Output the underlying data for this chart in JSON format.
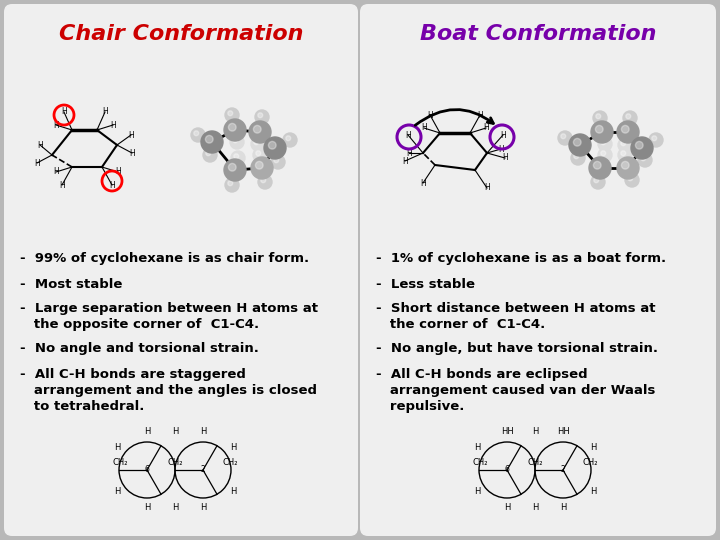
{
  "background_color": "#b8b8b8",
  "left_panel": {
    "title": "Chair Conformation",
    "title_color": "#cc0000",
    "panel_bg": "#efefef"
  },
  "right_panel": {
    "title": "Boat Conformation",
    "title_color": "#7700aa",
    "panel_bg": "#efefef"
  },
  "left_bullets": [
    "-  99% of cyclohexane is as chair form.",
    "-  Most stable",
    "-  Large separation between H atoms at\n   the opposite corner of  C1-C4.",
    "-  No angle and torsional strain.",
    "-  All C-H bonds are staggered\n   arrangement and the angles is closed\n   to tetrahedral."
  ],
  "right_bullets": [
    "-  1% of cyclohexane is as a boat form.",
    "-  Less stable",
    "-  Short distance between H atoms at\n   the corner of  C1-C4.",
    "-  No angle, but have torsional strain.",
    "-  All C-H bonds are eclipsed\n   arrangement caused van der Waals\n   repulsive."
  ],
  "font_size_title": 16,
  "font_size_body": 9.5
}
